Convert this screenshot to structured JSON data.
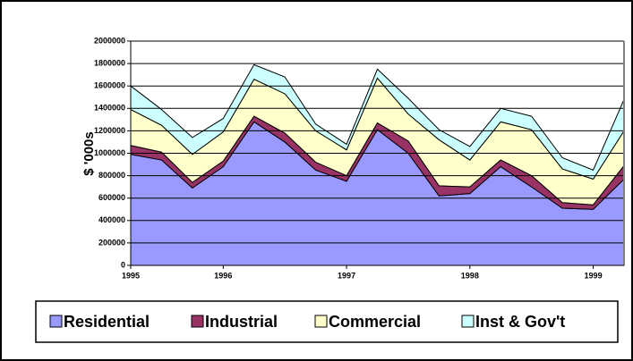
{
  "chart_data": {
    "type": "stacked_area",
    "y_label": "$ '000s",
    "categories": [
      "1995",
      null,
      null,
      "1996",
      null,
      null,
      null,
      "1997",
      null,
      null,
      null,
      "1998",
      null,
      null,
      null,
      "1999",
      null
    ],
    "series": [
      {
        "name": "Residential",
        "color": "#9999ff",
        "values": [
          990000,
          940000,
          690000,
          880000,
          1280000,
          1100000,
          850000,
          750000,
          1210000,
          1000000,
          620000,
          640000,
          880000,
          700000,
          510000,
          500000,
          770000
        ]
      },
      {
        "name": "Industrial",
        "color": "#993366",
        "values": [
          80000,
          70000,
          50000,
          50000,
          50000,
          80000,
          70000,
          50000,
          60000,
          110000,
          90000,
          60000,
          60000,
          100000,
          50000,
          40000,
          120000
        ]
      },
      {
        "name": "Commercial",
        "color": "#ffffcc",
        "values": [
          320000,
          240000,
          250000,
          260000,
          330000,
          350000,
          280000,
          230000,
          400000,
          240000,
          410000,
          240000,
          340000,
          410000,
          300000,
          230000,
          310000
        ]
      },
      {
        "name": "Inst & Gov't",
        "color": "#ccffff",
        "values": [
          210000,
          140000,
          150000,
          120000,
          130000,
          150000,
          60000,
          50000,
          80000,
          140000,
          90000,
          120000,
          120000,
          120000,
          100000,
          80000,
          280000
        ]
      }
    ],
    "ylim": [
      0,
      2000000
    ],
    "yticks": [
      0,
      200000,
      400000,
      600000,
      800000,
      1000000,
      1200000,
      1400000,
      1600000,
      1800000,
      2000000
    ],
    "grid": true,
    "legend": "bottom"
  }
}
